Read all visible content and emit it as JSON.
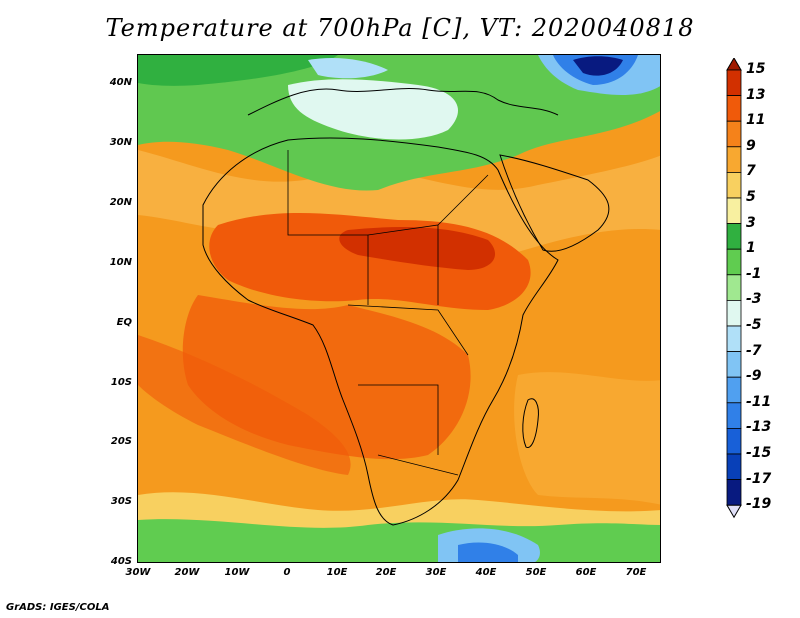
{
  "title": "Temperature at 700hPa [C], VT: 2020040818",
  "credit": "GrADS: IGES/COLA",
  "axes": {
    "lat_ticks": [
      "40N",
      "30N",
      "20N",
      "10N",
      "EQ",
      "10S",
      "20S",
      "30S",
      "40S"
    ],
    "lon_ticks": [
      "30W",
      "20W",
      "10W",
      "0",
      "10E",
      "20E",
      "30E",
      "40E",
      "50E",
      "60E",
      "70E"
    ]
  },
  "colorbar": {
    "labels": [
      "15",
      "13",
      "11",
      "9",
      "7",
      "5",
      "3",
      "1",
      "-1",
      "-3",
      "-5",
      "-7",
      "-9",
      "-11",
      "-13",
      "-15",
      "-17",
      "-19"
    ],
    "colors": [
      "#a01a00",
      "#d23000",
      "#f05a0a",
      "#f5821a",
      "#f8a830",
      "#f8d060",
      "#f8f0a0",
      "#30b040",
      "#60cc50",
      "#a0e890",
      "#e0f8f0",
      "#b0e0f8",
      "#80c4f4",
      "#50a0f0",
      "#3080e8",
      "#1860d8",
      "#0840b8",
      "#081a80",
      "#e0e0f8"
    ]
  }
}
